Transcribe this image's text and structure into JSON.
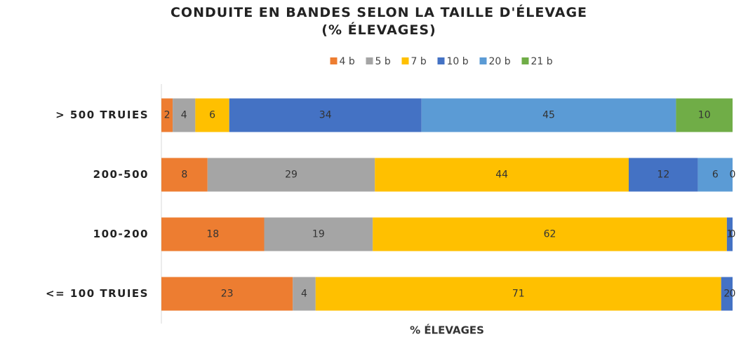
{
  "chart_data": {
    "type": "bar",
    "orientation": "horizontal",
    "stacked": "percent",
    "title": "CONDUITE EN BANDES SELON LA TAILLE D'ÉLEVAGE (% ÉLEVAGES)",
    "x_label": "% ÉLEVAGES",
    "categories": [
      "> 500 TRUIES",
      "200-500",
      "100-200",
      "<= 100 TRUIES"
    ],
    "series": [
      {
        "name": "4 b",
        "color": "#ED7D31",
        "values": [
          2,
          8,
          18,
          23
        ]
      },
      {
        "name": "5 b",
        "color": "#A5A5A5",
        "values": [
          4,
          29,
          19,
          4
        ]
      },
      {
        "name": "7 b",
        "color": "#FFC000",
        "values": [
          6,
          44,
          62,
          71
        ]
      },
      {
        "name": "10 b",
        "color": "#4472C4",
        "values": [
          34,
          12,
          1,
          2
        ]
      },
      {
        "name": "20 b",
        "color": "#5B9BD5",
        "values": [
          45,
          6,
          0,
          0
        ]
      },
      {
        "name": "21 b",
        "color": "#70AD47",
        "values": [
          10,
          0,
          null,
          null
        ]
      }
    ],
    "legend": "top"
  }
}
